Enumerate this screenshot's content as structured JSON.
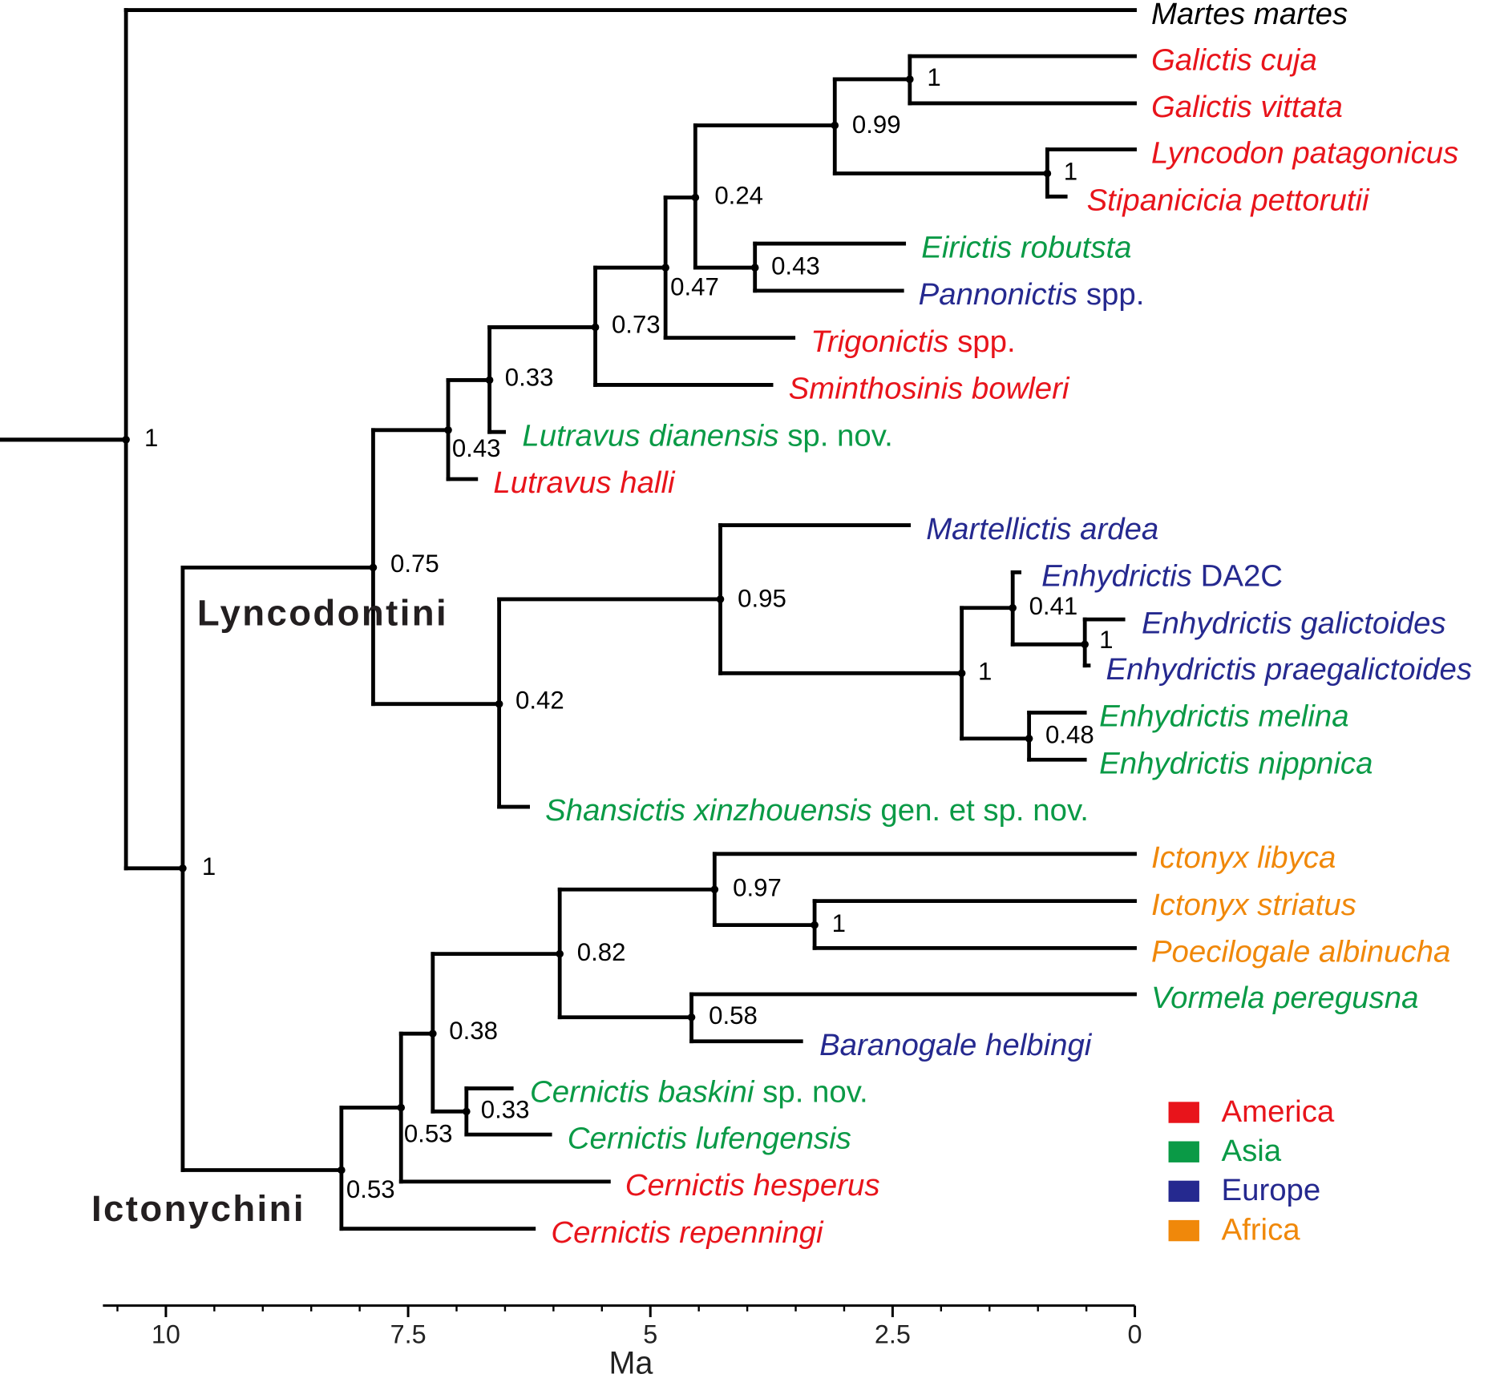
{
  "legend": [
    {
      "label": "America",
      "color": "#e8141b"
    },
    {
      "label": "Asia",
      "color": "#0a9a46"
    },
    {
      "label": "Europe",
      "color": "#25298f"
    },
    {
      "label": "Africa",
      "color": "#f0880a"
    }
  ],
  "taxa": [
    {
      "name": "Martes martes"
    },
    {
      "name": "Galictis cuja",
      "region": 0
    },
    {
      "name": "Galictis vittata",
      "region": 0
    },
    {
      "name": "Lyncodon patagonicus",
      "region": 0
    },
    {
      "name": "Stipanicicia pettorutii",
      "region": 0
    },
    {
      "name": "Eirictis robutsta",
      "region": 1
    },
    {
      "name": "Pannonictis",
      "suffix": "spp.",
      "region": 2
    },
    {
      "name": "Trigonictis",
      "suffix": "spp.",
      "region": 0
    },
    {
      "name": "Sminthosinis bowleri",
      "region": 0
    },
    {
      "name": "Lutravus dianensis",
      "suffix": "sp. nov.",
      "region": 1
    },
    {
      "name": "Lutravus halli",
      "region": 0
    },
    {
      "name": "Martellictis ardea",
      "region": 2
    },
    {
      "name": "Enhydrictis",
      "suffix": "DA2C",
      "region": 2
    },
    {
      "name": "Enhydrictis galictoides",
      "region": 2
    },
    {
      "name": "Enhydrictis praegalictoides",
      "region": 2
    },
    {
      "name": "Enhydrictis melina",
      "region": 1
    },
    {
      "name": "Enhydrictis nippnica",
      "region": 1
    },
    {
      "name": "Shansictis xinzhouensis",
      "suffix": "gen. et sp. nov.",
      "region": 1
    },
    {
      "name": "Ictonyx libyca",
      "region": 3
    },
    {
      "name": "Ictonyx striatus",
      "region": 3
    },
    {
      "name": "Poecilogale albinucha",
      "region": 3
    },
    {
      "name": "Vormela peregusna",
      "region": 1
    },
    {
      "name": "Baranogale helbingi",
      "region": 2
    },
    {
      "name": "Cernictis baskini",
      "suffix": "sp. nov.",
      "region": 1
    },
    {
      "name": "Cernictis lufengensis",
      "region": 1
    },
    {
      "name": "Cernictis hesperus",
      "region": 0
    },
    {
      "name": "Cernictis repenningi",
      "region": 0
    }
  ],
  "support": [
    1,
    1,
    0.75,
    0.43,
    0.33,
    0.73,
    0.47,
    0.24,
    0.99,
    1,
    1,
    0.43,
    0.42,
    0.95,
    1,
    0.41,
    1,
    0.48,
    0.53,
    0.53,
    0.38,
    0.33,
    0.82,
    0.97,
    1,
    0.58
  ],
  "clades": [
    "Lyncodontini",
    "Ictonychini"
  ],
  "axis": {
    "label": "Ma",
    "xlim": [
      10.65,
      0
    ],
    "ticks": [
      10,
      7.5,
      5,
      2.5,
      0
    ]
  }
}
